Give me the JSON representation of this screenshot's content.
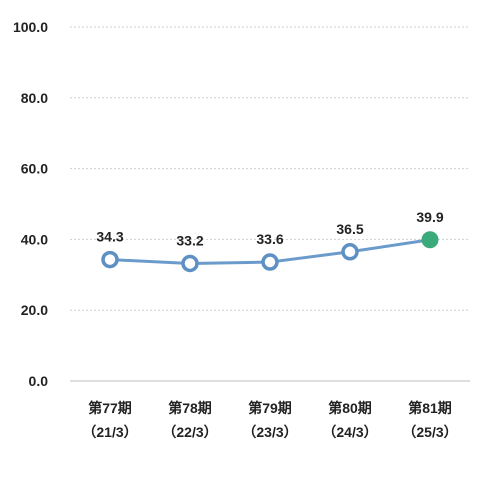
{
  "chart_data": {
    "type": "line",
    "categories": [
      [
        "第77期",
        "（21/3）"
      ],
      [
        "第78期",
        "（22/3）"
      ],
      [
        "第79期",
        "（23/3）"
      ],
      [
        "第80期",
        "（24/3）"
      ],
      [
        "第81期",
        "（25/3）"
      ]
    ],
    "values": [
      34.3,
      33.2,
      33.6,
      36.5,
      39.9
    ],
    "value_labels": [
      "34.3",
      "33.2",
      "33.6",
      "36.5",
      "39.9"
    ],
    "ylim": [
      0,
      100
    ],
    "yticks": [
      "0.0",
      "20.0",
      "40.0",
      "60.0",
      "80.0",
      "100.0"
    ],
    "grid": true,
    "colors": {
      "line": "#6b9bcb",
      "marker_stroke": "#5f90c4",
      "marker_fill": "#ffffff",
      "highlight_fill": "#3aaa7a",
      "grid": "#cfcfcf",
      "axis": "#bdbdbd"
    },
    "highlight_index": 4
  }
}
